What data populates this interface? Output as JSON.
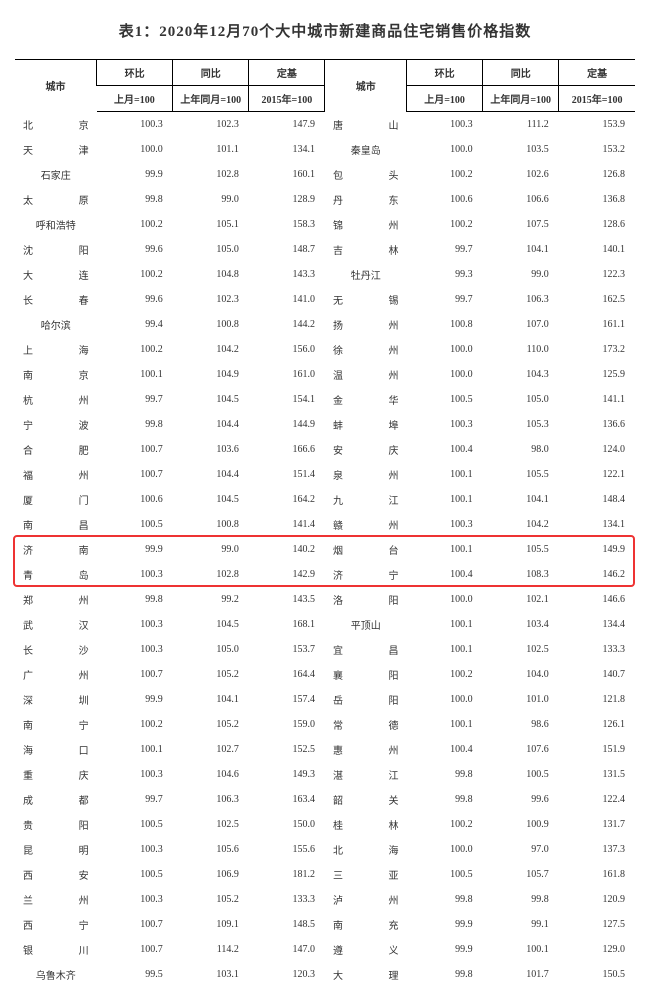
{
  "title": "表1：2020年12月70个大中城市新建商品住宅销售价格指数",
  "headers": {
    "city": "城市",
    "mom": "环比",
    "yoy": "同比",
    "base": "定基",
    "mom_sub": "上月=100",
    "yoy_sub": "上年同月=100",
    "base_sub": "2015年=100"
  },
  "highlight_rows": [
    17,
    18
  ],
  "col_widths": {
    "city": 60,
    "val": 56
  },
  "rows": [
    {
      "c1": "北　京",
      "m1": "100.3",
      "y1": "102.3",
      "b1": "147.9",
      "c2": "唐　山",
      "m2": "100.3",
      "y2": "111.2",
      "b2": "153.9"
    },
    {
      "c1": "天　津",
      "m1": "100.0",
      "y1": "101.1",
      "b1": "134.1",
      "c2": "秦皇岛",
      "m2": "100.0",
      "y2": "103.5",
      "b2": "153.2"
    },
    {
      "c1": "石家庄",
      "m1": "99.9",
      "y1": "102.8",
      "b1": "160.1",
      "c2": "包　头",
      "m2": "100.2",
      "y2": "102.6",
      "b2": "126.8"
    },
    {
      "c1": "太　原",
      "m1": "99.8",
      "y1": "99.0",
      "b1": "128.9",
      "c2": "丹　东",
      "m2": "100.6",
      "y2": "106.6",
      "b2": "136.8"
    },
    {
      "c1": "呼和浩特",
      "m1": "100.2",
      "y1": "105.1",
      "b1": "158.3",
      "c2": "锦　州",
      "m2": "100.2",
      "y2": "107.5",
      "b2": "128.6"
    },
    {
      "c1": "沈　阳",
      "m1": "99.6",
      "y1": "105.0",
      "b1": "148.7",
      "c2": "吉　林",
      "m2": "99.7",
      "y2": "104.1",
      "b2": "140.1"
    },
    {
      "c1": "大　连",
      "m1": "100.2",
      "y1": "104.8",
      "b1": "143.3",
      "c2": "牡丹江",
      "m2": "99.3",
      "y2": "99.0",
      "b2": "122.3"
    },
    {
      "c1": "长　春",
      "m1": "99.6",
      "y1": "102.3",
      "b1": "141.0",
      "c2": "无　锡",
      "m2": "99.7",
      "y2": "106.3",
      "b2": "162.5"
    },
    {
      "c1": "哈尔滨",
      "m1": "99.4",
      "y1": "100.8",
      "b1": "144.2",
      "c2": "扬　州",
      "m2": "100.8",
      "y2": "107.0",
      "b2": "161.1"
    },
    {
      "c1": "上　海",
      "m1": "100.2",
      "y1": "104.2",
      "b1": "156.0",
      "c2": "徐　州",
      "m2": "100.0",
      "y2": "110.0",
      "b2": "173.2"
    },
    {
      "c1": "南　京",
      "m1": "100.1",
      "y1": "104.9",
      "b1": "161.0",
      "c2": "温　州",
      "m2": "100.0",
      "y2": "104.3",
      "b2": "125.9"
    },
    {
      "c1": "杭　州",
      "m1": "99.7",
      "y1": "104.5",
      "b1": "154.1",
      "c2": "金　华",
      "m2": "100.5",
      "y2": "105.0",
      "b2": "141.1"
    },
    {
      "c1": "宁　波",
      "m1": "99.8",
      "y1": "104.4",
      "b1": "144.9",
      "c2": "蚌　埠",
      "m2": "100.3",
      "y2": "105.3",
      "b2": "136.6"
    },
    {
      "c1": "合　肥",
      "m1": "100.7",
      "y1": "103.6",
      "b1": "166.6",
      "c2": "安　庆",
      "m2": "100.4",
      "y2": "98.0",
      "b2": "124.0"
    },
    {
      "c1": "福　州",
      "m1": "100.7",
      "y1": "104.4",
      "b1": "151.4",
      "c2": "泉　州",
      "m2": "100.1",
      "y2": "105.5",
      "b2": "122.1"
    },
    {
      "c1": "厦　门",
      "m1": "100.6",
      "y1": "104.5",
      "b1": "164.2",
      "c2": "九　江",
      "m2": "100.1",
      "y2": "104.1",
      "b2": "148.4"
    },
    {
      "c1": "南　昌",
      "m1": "100.5",
      "y1": "100.8",
      "b1": "141.4",
      "c2": "赣　州",
      "m2": "100.3",
      "y2": "104.2",
      "b2": "134.1"
    },
    {
      "c1": "济　南",
      "m1": "99.9",
      "y1": "99.0",
      "b1": "140.2",
      "c2": "烟　台",
      "m2": "100.1",
      "y2": "105.5",
      "b2": "149.9"
    },
    {
      "c1": "青　岛",
      "m1": "100.3",
      "y1": "102.8",
      "b1": "142.9",
      "c2": "济　宁",
      "m2": "100.4",
      "y2": "108.3",
      "b2": "146.2"
    },
    {
      "c1": "郑　州",
      "m1": "99.8",
      "y1": "99.2",
      "b1": "143.5",
      "c2": "洛　阳",
      "m2": "100.0",
      "y2": "102.1",
      "b2": "146.6"
    },
    {
      "c1": "武　汉",
      "m1": "100.3",
      "y1": "104.5",
      "b1": "168.1",
      "c2": "平顶山",
      "m2": "100.1",
      "y2": "103.4",
      "b2": "134.4"
    },
    {
      "c1": "长　沙",
      "m1": "100.3",
      "y1": "105.0",
      "b1": "153.7",
      "c2": "宜　昌",
      "m2": "100.1",
      "y2": "102.5",
      "b2": "133.3"
    },
    {
      "c1": "广　州",
      "m1": "100.7",
      "y1": "105.2",
      "b1": "164.4",
      "c2": "襄　阳",
      "m2": "100.2",
      "y2": "104.0",
      "b2": "140.7"
    },
    {
      "c1": "深　圳",
      "m1": "99.9",
      "y1": "104.1",
      "b1": "157.4",
      "c2": "岳　阳",
      "m2": "100.0",
      "y2": "101.0",
      "b2": "121.8"
    },
    {
      "c1": "南　宁",
      "m1": "100.2",
      "y1": "105.2",
      "b1": "159.0",
      "c2": "常　德",
      "m2": "100.1",
      "y2": "98.6",
      "b2": "126.1"
    },
    {
      "c1": "海　口",
      "m1": "100.1",
      "y1": "102.7",
      "b1": "152.5",
      "c2": "惠　州",
      "m2": "100.4",
      "y2": "107.6",
      "b2": "151.9"
    },
    {
      "c1": "重　庆",
      "m1": "100.3",
      "y1": "104.6",
      "b1": "149.3",
      "c2": "湛　江",
      "m2": "99.8",
      "y2": "100.5",
      "b2": "131.5"
    },
    {
      "c1": "成　都",
      "m1": "99.7",
      "y1": "106.3",
      "b1": "163.4",
      "c2": "韶　关",
      "m2": "99.8",
      "y2": "99.6",
      "b2": "122.4"
    },
    {
      "c1": "贵　阳",
      "m1": "100.5",
      "y1": "102.5",
      "b1": "150.0",
      "c2": "桂　林",
      "m2": "100.2",
      "y2": "100.9",
      "b2": "131.7"
    },
    {
      "c1": "昆　明",
      "m1": "100.3",
      "y1": "105.6",
      "b1": "155.6",
      "c2": "北　海",
      "m2": "100.0",
      "y2": "97.0",
      "b2": "137.3"
    },
    {
      "c1": "西　安",
      "m1": "100.5",
      "y1": "106.9",
      "b1": "181.2",
      "c2": "三　亚",
      "m2": "100.5",
      "y2": "105.7",
      "b2": "161.8"
    },
    {
      "c1": "兰　州",
      "m1": "100.3",
      "y1": "105.2",
      "b1": "133.3",
      "c2": "泸　州",
      "m2": "99.8",
      "y2": "99.8",
      "b2": "120.9"
    },
    {
      "c1": "西　宁",
      "m1": "100.7",
      "y1": "109.1",
      "b1": "148.5",
      "c2": "南　充",
      "m2": "99.9",
      "y2": "99.1",
      "b2": "127.5"
    },
    {
      "c1": "银　川",
      "m1": "100.7",
      "y1": "114.2",
      "b1": "147.0",
      "c2": "遵　义",
      "m2": "99.9",
      "y2": "100.1",
      "b2": "129.0"
    },
    {
      "c1": "乌鲁木齐",
      "m1": "99.5",
      "y1": "103.1",
      "b1": "120.3",
      "c2": "大　理",
      "m2": "99.8",
      "y2": "101.7",
      "b2": "150.5"
    }
  ]
}
